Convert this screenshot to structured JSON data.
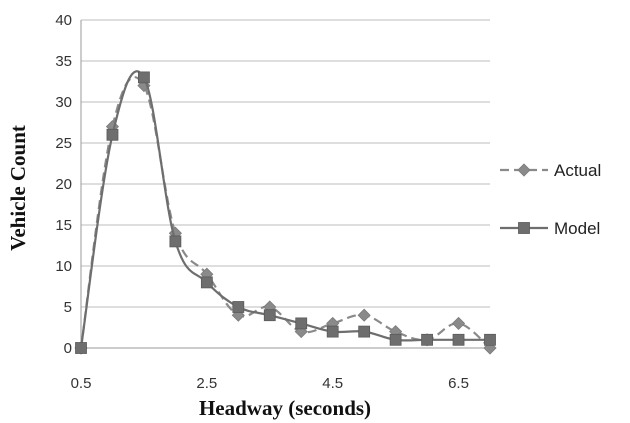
{
  "chart_data": {
    "type": "line",
    "title": "",
    "xlabel": "Headway (seconds)",
    "ylabel": "Vehicle Count",
    "xlim": [
      0.5,
      7
    ],
    "ylim": [
      0,
      40
    ],
    "x_ticks": [
      "0.5",
      "2.5",
      "4.5",
      "6.5"
    ],
    "x_tick_values": [
      0.5,
      2.5,
      4.5,
      6.5
    ],
    "y_ticks": [
      "0",
      "5",
      "10",
      "15",
      "20",
      "25",
      "30",
      "35",
      "40"
    ],
    "y_tick_values": [
      0,
      5,
      10,
      15,
      20,
      25,
      30,
      35,
      40
    ],
    "grid": "horizontal",
    "legend_position": "right",
    "x": [
      0.5,
      1.0,
      1.5,
      2.0,
      2.5,
      3.0,
      3.5,
      4.0,
      4.5,
      5.0,
      5.5,
      6.0,
      6.5,
      7.0
    ],
    "series": [
      {
        "name": "Actual",
        "line_style": "dashed",
        "marker": "diamond",
        "color": "#8a8a8a",
        "values": [
          0,
          27,
          32,
          14,
          9,
          4,
          5,
          2,
          3,
          4,
          2,
          1,
          3,
          0
        ]
      },
      {
        "name": "Model",
        "line_style": "solid",
        "marker": "square",
        "color": "#6e6e6e",
        "values": [
          0,
          26,
          33,
          13,
          8,
          5,
          4,
          3,
          2,
          2,
          1,
          1,
          1,
          1
        ]
      }
    ]
  }
}
